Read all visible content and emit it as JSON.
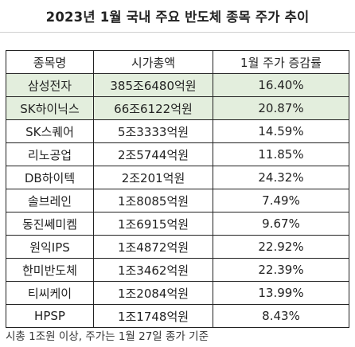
{
  "title": "2023년 1월 국내 주요 반도체 종목 주가 추이",
  "headers": {
    "name": "종목명",
    "market_cap": "시가총액",
    "change": "1월 주가 증감률"
  },
  "rows": [
    {
      "name": "삼성전자",
      "market_cap": "385조6480억원",
      "change": "16.40%"
    },
    {
      "name": "SK하이닉스",
      "market_cap": "66조6122억원",
      "change": "20.87%"
    },
    {
      "name": "SK스퀘어",
      "market_cap": "5조3333억원",
      "change": "14.59%"
    },
    {
      "name": "리노공업",
      "market_cap": "2조5744억원",
      "change": "11.85%"
    },
    {
      "name": "DB하이텍",
      "market_cap": "2조201억원",
      "change": "24.32%"
    },
    {
      "name": "솔브레인",
      "market_cap": "1조8085억원",
      "change": "7.49%"
    },
    {
      "name": "동진쎄미켐",
      "market_cap": "1조6915억원",
      "change": "9.67%"
    },
    {
      "name": "원익IPS",
      "market_cap": "1조4872억원",
      "change": "22.92%"
    },
    {
      "name": "한미반도체",
      "market_cap": "1조3462억원",
      "change": "22.39%"
    },
    {
      "name": "티씨케이",
      "market_cap": "1조2084억원",
      "change": "13.99%"
    },
    {
      "name": "HPSP",
      "market_cap": "1조1748억원",
      "change": "8.43%"
    }
  ],
  "highlight_color": "#e3eedd",
  "note": "시총 1조원 이상, 주가는 1월 27일 종가 기준"
}
